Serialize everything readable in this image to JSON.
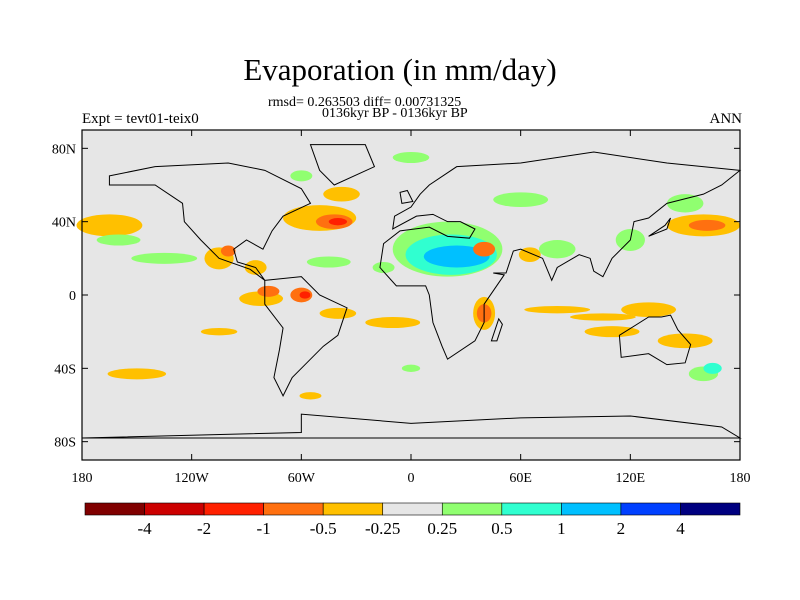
{
  "title": "Evaporation (in mm/day)",
  "subtitle_stats": "rmsd= 0.263503 diff= 0.00731325",
  "subtitle_period": "0136kyr BP - 0136kyr BP",
  "left_label": "Expt = tevt01-teix0",
  "right_label": "ANN",
  "map": {
    "lat_ticks": [
      "80N",
      "40N",
      "0",
      "40S",
      "80S"
    ],
    "lat_values": [
      80,
      40,
      0,
      -40,
      -80
    ],
    "lon_ticks": [
      "180",
      "120W",
      "60W",
      "0",
      "60E",
      "120E",
      "180"
    ],
    "lon_values": [
      -180,
      -120,
      -60,
      0,
      60,
      120,
      180
    ],
    "background": "#E6E6E6"
  },
  "colorbar": {
    "colors": [
      "#800000",
      "#CC0000",
      "#FF2000",
      "#FF7010",
      "#FFC000",
      "#E6E6E6",
      "#90FF70",
      "#30FFD0",
      "#00C0FF",
      "#0040FF",
      "#000080"
    ],
    "labels": [
      "-4",
      "-2",
      "-1",
      "-0.5",
      "-0.25",
      "0.25",
      "0.5",
      "1",
      "2",
      "4"
    ]
  }
}
